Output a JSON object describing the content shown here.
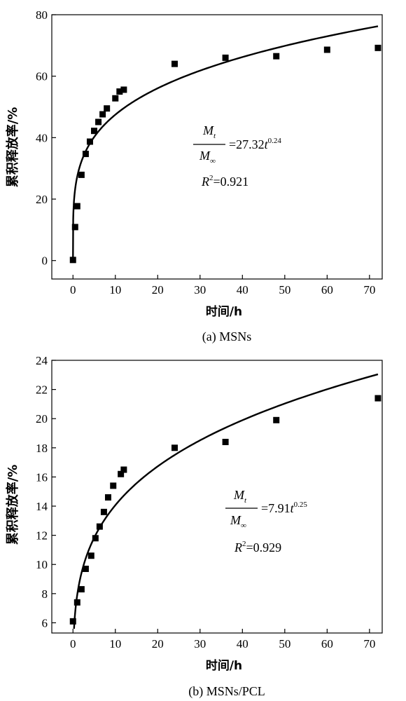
{
  "chart_data": [
    {
      "type": "scatter",
      "caption": "(a) MSNs",
      "xlabel": "时间/h",
      "ylabel": "累积释放率/%",
      "xlim": [
        -5,
        73
      ],
      "ylim": [
        -6,
        80
      ],
      "xticks": [
        0,
        10,
        20,
        30,
        40,
        50,
        60,
        70
      ],
      "yticks": [
        0,
        20,
        40,
        60,
        80
      ],
      "points": [
        [
          0,
          0.2
        ],
        [
          0.5,
          10.9
        ],
        [
          1,
          17.7
        ],
        [
          2,
          27.9
        ],
        [
          3,
          34.7
        ],
        [
          4,
          38.7
        ],
        [
          5,
          42.2
        ],
        [
          6,
          45.1
        ],
        [
          7,
          47.6
        ],
        [
          8,
          49.5
        ],
        [
          10,
          52.8
        ],
        [
          11,
          55.0
        ],
        [
          12,
          55.6
        ],
        [
          24,
          64.0
        ],
        [
          36,
          66.0
        ],
        [
          48,
          66.5
        ],
        [
          60,
          68.6
        ],
        [
          72,
          69.2
        ]
      ],
      "fit": {
        "a": 27.32,
        "b": 0.24,
        "x_from": 0.05,
        "x_to": 72
      },
      "equation": {
        "num": "M",
        "num_sub": "t",
        "den": "M",
        "den_sub": "∞",
        "rhs": "=27.32",
        "var": "t",
        "exp": "0.24"
      },
      "r2": {
        "label": "R",
        "sup": "2",
        "value": "=0.921"
      }
    },
    {
      "type": "scatter",
      "caption": "(b) MSNs/PCL",
      "xlabel": "时间/h",
      "ylabel": "累积释放率/%",
      "xlim": [
        -5,
        73
      ],
      "ylim": [
        5.3,
        24
      ],
      "xticks": [
        0,
        10,
        20,
        30,
        40,
        50,
        60,
        70
      ],
      "yticks": [
        6,
        8,
        10,
        12,
        14,
        16,
        18,
        20,
        22,
        24
      ],
      "points": [
        [
          0,
          6.1
        ],
        [
          1,
          7.4
        ],
        [
          2,
          8.3
        ],
        [
          3,
          9.7
        ],
        [
          4.3,
          10.6
        ],
        [
          5.3,
          11.8
        ],
        [
          6.3,
          12.6
        ],
        [
          7.3,
          13.6
        ],
        [
          8.3,
          14.6
        ],
        [
          9.5,
          15.4
        ],
        [
          11.3,
          16.2
        ],
        [
          12,
          16.5
        ],
        [
          24,
          18.0
        ],
        [
          36,
          18.4
        ],
        [
          48,
          19.9
        ],
        [
          72,
          21.4
        ]
      ],
      "fit": {
        "a": 7.91,
        "b": 0.25,
        "x_from": 0.25,
        "x_to": 72
      },
      "equation": {
        "num": "M",
        "num_sub": "t",
        "den": "M",
        "den_sub": "∞",
        "rhs": "=7.91",
        "var": "t",
        "exp": "0.25"
      },
      "r2": {
        "label": "R",
        "sup": "2",
        "value": "=0.929"
      }
    }
  ]
}
